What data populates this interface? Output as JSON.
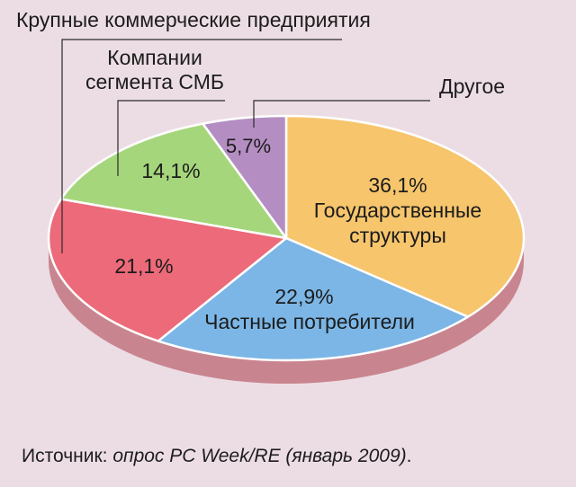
{
  "chart_data": {
    "type": "pie",
    "slices": [
      {
        "label": "Государственные структуры",
        "value": 36.1,
        "display": "36,1%",
        "color": "#f6c56c"
      },
      {
        "label": "Частные потребители",
        "value": 22.9,
        "display": "22,9%",
        "color": "#7cb6e6"
      },
      {
        "label": "Крупные коммерческие предприятия",
        "value": 21.1,
        "display": "21,1%",
        "color": "#ec6a79"
      },
      {
        "label": "Компании сегмента СМБ",
        "value": 14.1,
        "display": "14,1%",
        "color": "#a6d67c"
      },
      {
        "label": "Другое",
        "value": 5.7,
        "display": "5,7%",
        "color": "#b48ec2"
      }
    ],
    "labels": {
      "gov_line1": "Государственные",
      "gov_line2": "структуры",
      "private": "Частные потребители",
      "large": "Крупные коммерческие предприятия",
      "smb_line1": "Компании",
      "smb_line2": "сегмента СМБ",
      "other": "Другое"
    }
  },
  "source": {
    "prefix": "Источник: ",
    "survey": "опрос PC Week/RE",
    "date": " (январь 2009)",
    "end": "."
  },
  "colors": {
    "background": "#ecdde4",
    "shadow": "#c9858f",
    "leader": "#2a2a2a"
  }
}
